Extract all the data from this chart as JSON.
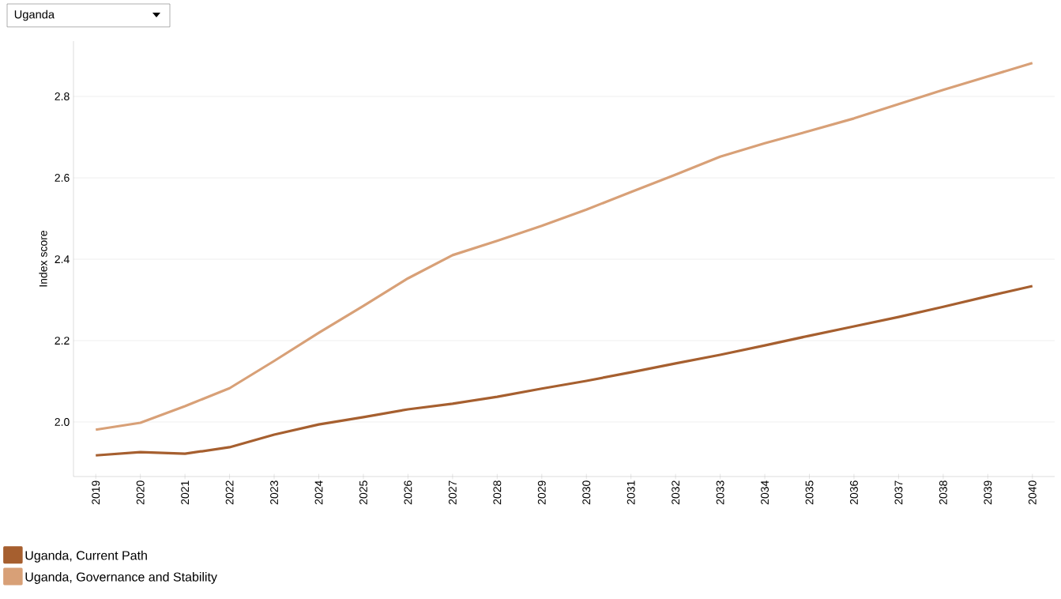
{
  "chart_data": {
    "type": "line",
    "ylabel": "Index score",
    "annotations": [
      "Uganda"
    ],
    "categories": [
      "2019",
      "2020",
      "2021",
      "2022",
      "2023",
      "2024",
      "2025",
      "2026",
      "2027",
      "2028",
      "2029",
      "2030",
      "2031",
      "2032",
      "2033",
      "2034",
      "2035",
      "2036",
      "2037",
      "2038",
      "2039",
      "2040"
    ],
    "series": [
      {
        "name": "Uganda, Current Path",
        "color": "#a65f2f",
        "values": [
          1.918,
          1.926,
          1.922,
          1.938,
          1.969,
          1.994,
          2.012,
          2.031,
          2.045,
          2.062,
          2.082,
          2.101,
          2.122,
          2.144,
          2.165,
          2.188,
          2.212,
          2.235,
          2.258,
          2.283,
          2.309,
          2.334
        ]
      },
      {
        "name": "Uganda, Governance and Stability",
        "color": "#d8a077",
        "values": [
          1.981,
          1.998,
          2.039,
          2.083,
          2.15,
          2.219,
          2.285,
          2.353,
          2.41,
          2.445,
          2.482,
          2.522,
          2.565,
          2.608,
          2.652,
          2.685,
          2.715,
          2.746,
          2.781,
          2.816,
          2.849,
          2.882
        ]
      }
    ],
    "ylim": [
      1.866,
      2.936
    ],
    "yticks": [
      {
        "value": 2.0,
        "label": "2.0"
      },
      2.2,
      2.4,
      2.6,
      2.8
    ],
    "grid": "y",
    "legend": "bottom",
    "marker": "none",
    "line_style": "solid"
  }
}
